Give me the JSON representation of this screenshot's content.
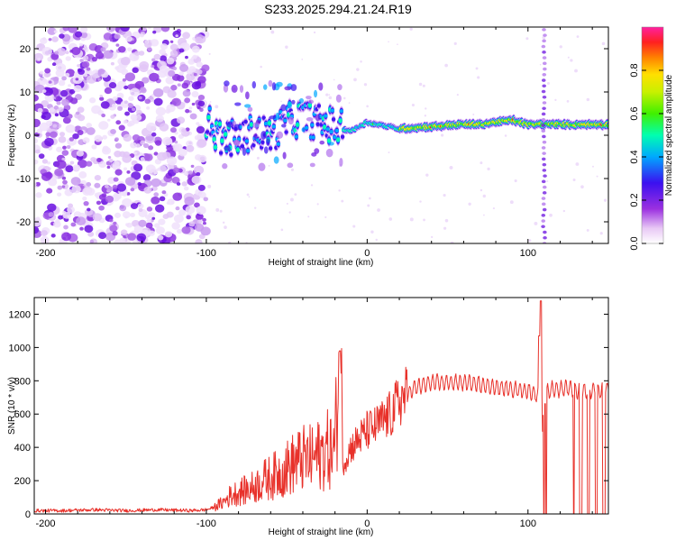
{
  "title": "S233.2025.294.21.24.R19",
  "chart_data": [
    {
      "type": "heatmap",
      "title": "S233.2025.294.21.24.R19",
      "xlabel": "Height of straight line (km)",
      "ylabel": "Frequency (Hz)",
      "xlim": [
        -207,
        150
      ],
      "ylim": [
        -25,
        25
      ],
      "xticks": [
        -200,
        -100,
        0,
        100
      ],
      "yticks": [
        -20,
        -10,
        0,
        10,
        20
      ],
      "colorbar": {
        "label": "Normalized spectral amplitude",
        "range": [
          0,
          1
        ],
        "ticks": [
          "0.0",
          "0.2",
          "0.4",
          "0.6",
          "0.8"
        ],
        "tick_values": [
          0.0,
          0.2,
          0.4,
          0.6,
          0.8
        ]
      },
      "features": [
        {
          "name": "noise",
          "x_range": [
            -207,
            -100
          ],
          "freq_range": [
            -25,
            25
          ],
          "amplitude": 0.1
        },
        {
          "name": "carrier",
          "points": [
            [
              -95,
              0
            ],
            [
              -80,
              -1
            ],
            [
              -70,
              1
            ],
            [
              -60,
              0
            ],
            [
              -50,
              3
            ],
            [
              -40,
              4
            ],
            [
              -30,
              3
            ],
            [
              -20,
              2
            ],
            [
              -10,
              1
            ],
            [
              0,
              3
            ],
            [
              20,
              1.5
            ],
            [
              40,
              2
            ],
            [
              60,
              2.5
            ],
            [
              70,
              2.5
            ],
            [
              80,
              3
            ],
            [
              90,
              3.5
            ],
            [
              100,
              2.5
            ],
            [
              110,
              2.5
            ],
            [
              120,
              2.5
            ],
            [
              150,
              2.5
            ]
          ]
        },
        {
          "name": "vertical-stripe",
          "x": 110,
          "freq_range": [
            -25,
            25
          ]
        }
      ]
    },
    {
      "type": "line",
      "xlabel": "Height of straight line (km)",
      "ylabel": "SNR (10 * v/v)",
      "xlim": [
        -207,
        150
      ],
      "ylim": [
        0,
        1300
      ],
      "xticks": [
        -200,
        -100,
        0,
        100
      ],
      "yticks": [
        0,
        200,
        400,
        600,
        800,
        1000,
        1200
      ],
      "series": [
        {
          "name": "SNR",
          "color": "#e8312a",
          "x": [
            -207,
            -190,
            -170,
            -150,
            -130,
            -110,
            -100,
            -95,
            -90,
            -85,
            -80,
            -75,
            -70,
            -65,
            -60,
            -55,
            -50,
            -45,
            -40,
            -35,
            -30,
            -25,
            -20,
            -17,
            -15,
            -10,
            -5,
            0,
            5,
            10,
            15,
            20,
            25,
            30,
            40,
            50,
            60,
            70,
            80,
            90,
            100,
            105,
            107,
            108,
            109,
            110,
            112,
            115,
            120,
            125,
            130,
            135,
            140,
            145,
            150
          ],
          "values": [
            20,
            20,
            25,
            20,
            25,
            20,
            25,
            40,
            60,
            100,
            120,
            130,
            150,
            180,
            200,
            220,
            250,
            280,
            300,
            300,
            320,
            350,
            350,
            980,
            300,
            400,
            450,
            500,
            520,
            560,
            600,
            680,
            720,
            760,
            790,
            790,
            790,
            780,
            760,
            750,
            740,
            720,
            700,
            1280,
            450,
            700,
            730,
            750,
            750,
            760,
            740,
            740,
            740,
            740,
            750
          ],
          "dropouts": [
            [
              108,
              112
            ],
            [
              128,
              150
            ]
          ]
        }
      ]
    }
  ]
}
